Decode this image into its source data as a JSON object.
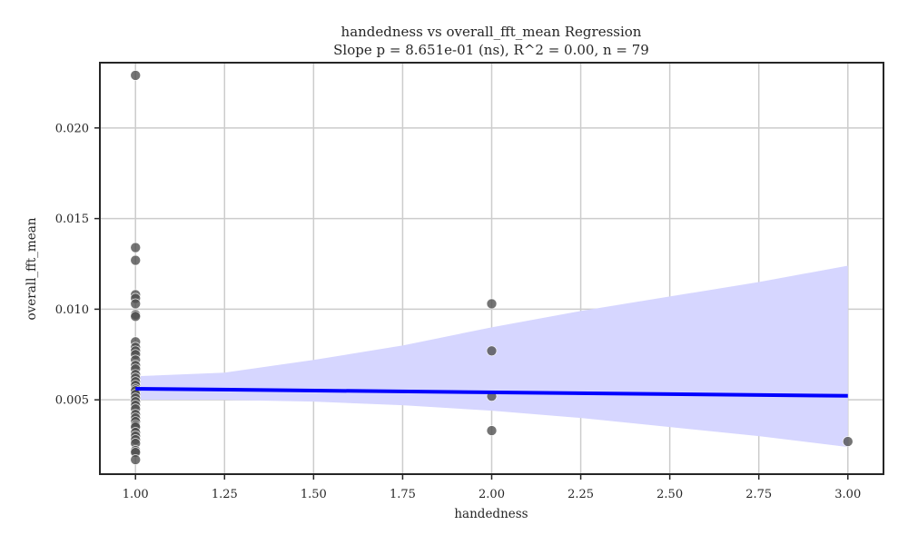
{
  "chart_data": {
    "type": "scatter",
    "title": "handedness vs overall_fft_mean Regression",
    "subtitle": "Slope p = 8.651e-01 (ns), R^2 = 0.00, n = 79",
    "xlabel": "handedness",
    "ylabel": "overall_fft_mean",
    "xlim": [
      0.9,
      3.1
    ],
    "ylim": [
      0.0009,
      0.0236
    ],
    "grid": true,
    "x_ticks": [
      1.0,
      1.25,
      1.5,
      1.75,
      2.0,
      2.25,
      2.5,
      2.75,
      3.0
    ],
    "x_tick_labels": [
      "1.00",
      "1.25",
      "1.50",
      "1.75",
      "2.00",
      "2.25",
      "2.50",
      "2.75",
      "3.00"
    ],
    "y_ticks": [
      0.005,
      0.01,
      0.015,
      0.02
    ],
    "y_tick_labels": [
      "0.005",
      "0.010",
      "0.015",
      "0.020"
    ],
    "points": [
      [
        1.0,
        0.0229
      ],
      [
        1.0,
        0.0134
      ],
      [
        1.0,
        0.0127
      ],
      [
        1.0,
        0.0108
      ],
      [
        1.0,
        0.0106
      ],
      [
        1.0,
        0.0103
      ],
      [
        1.0,
        0.0097
      ],
      [
        1.0,
        0.0096
      ],
      [
        1.0,
        0.0082
      ],
      [
        1.0,
        0.0079
      ],
      [
        1.0,
        0.0077
      ],
      [
        1.0,
        0.0075
      ],
      [
        1.0,
        0.0072
      ],
      [
        1.0,
        0.0069
      ],
      [
        1.0,
        0.0067
      ],
      [
        1.0,
        0.0064
      ],
      [
        1.0,
        0.0062
      ],
      [
        1.0,
        0.006
      ],
      [
        1.0,
        0.0058
      ],
      [
        1.0,
        0.0056
      ],
      [
        1.0,
        0.0055
      ],
      [
        1.0,
        0.0053
      ],
      [
        1.0,
        0.0051
      ],
      [
        1.0,
        0.0049
      ],
      [
        1.0,
        0.0047
      ],
      [
        1.0,
        0.0045
      ],
      [
        1.0,
        0.0042
      ],
      [
        1.0,
        0.004
      ],
      [
        1.0,
        0.0038
      ],
      [
        1.0,
        0.0036
      ],
      [
        1.0,
        0.0035
      ],
      [
        1.0,
        0.0032
      ],
      [
        1.0,
        0.003
      ],
      [
        1.0,
        0.0028
      ],
      [
        1.0,
        0.0026
      ],
      [
        1.0,
        0.0022
      ],
      [
        1.0,
        0.0021
      ],
      [
        1.0,
        0.0017
      ],
      [
        2.0,
        0.0103
      ],
      [
        2.0,
        0.0077
      ],
      [
        2.0,
        0.0052
      ],
      [
        2.0,
        0.0033
      ],
      [
        3.0,
        0.0027
      ]
    ],
    "regression": {
      "x": [
        1.0,
        3.0
      ],
      "y": [
        0.00561,
        0.00522
      ]
    },
    "confidence_band": {
      "x": [
        1.0,
        1.25,
        1.5,
        1.75,
        2.0,
        2.25,
        2.5,
        2.75,
        3.0
      ],
      "lower": [
        0.005,
        0.005,
        0.0049,
        0.0047,
        0.0044,
        0.004,
        0.0035,
        0.003,
        0.0024
      ],
      "upper": [
        0.0063,
        0.0065,
        0.0072,
        0.008,
        0.009,
        0.0099,
        0.0107,
        0.0115,
        0.0124
      ]
    },
    "colors": {
      "points": "#4d4d4d",
      "regression_line": "#0000ff",
      "confidence_band": "#d6d6ff",
      "grid": "#cccccc",
      "axes": "#262626"
    }
  }
}
